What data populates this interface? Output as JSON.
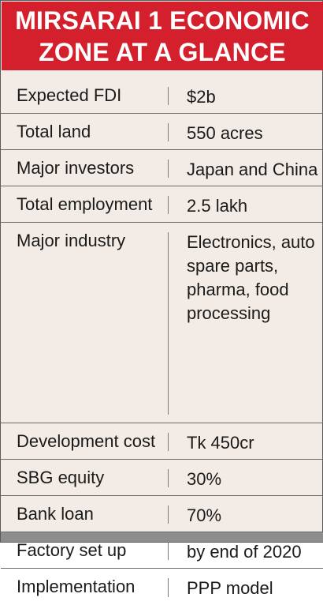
{
  "title": {
    "line1": "MIRSARAI 1 ECONOMIC",
    "line2": "ZONE AT A GLANCE"
  },
  "rows": [
    {
      "label": "Expected FDI",
      "value": "$2b"
    },
    {
      "label": "Total land",
      "value": "550 acres"
    },
    {
      "label": "Major investors",
      "value": "Japan and China"
    },
    {
      "label": "Total employment",
      "value": "2.5 lakh"
    },
    {
      "label": "Major industry",
      "value": "Electronics, auto spare parts, pharma, food processing"
    },
    {
      "label": "Development cost",
      "value": "Tk 450cr"
    },
    {
      "label": "SBG equity",
      "value": "30%"
    },
    {
      "label": "Bank loan",
      "value": "70%"
    },
    {
      "label": "Factory set up",
      "value": "by end of 2020"
    },
    {
      "label": "Implementation",
      "value": "PPP model"
    }
  ],
  "colors": {
    "header_bg": "#d4202c",
    "card_bg": "#f3ece6"
  }
}
